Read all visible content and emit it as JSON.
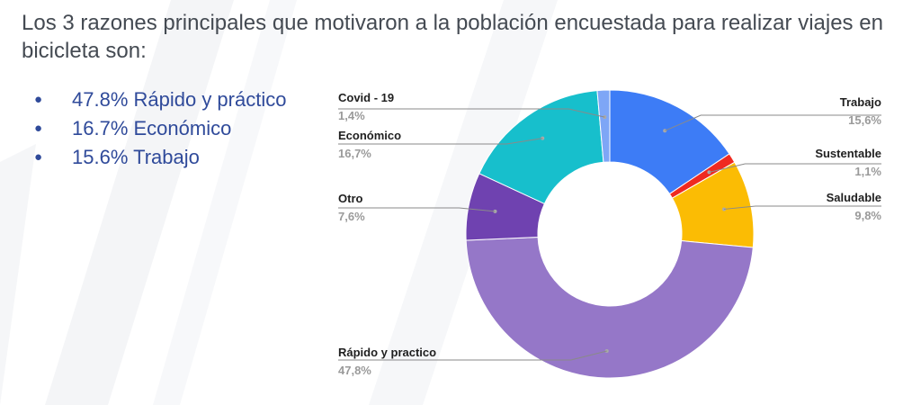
{
  "heading": "Los 3 razones principales que motivaron a la población encuestada para realizar viajes en bicicleta son:",
  "bullets": [
    "47.8% Rápido y práctico",
    "16.7% Económico",
    "15.6% Trabajo"
  ],
  "chart_data": {
    "type": "pie",
    "donut": true,
    "title": "",
    "slices": [
      {
        "name": "Trabajo",
        "value_label": "15,6%",
        "value": 15.6,
        "color": "#3d7cf6"
      },
      {
        "name": "Sustentable",
        "value_label": "1,1%",
        "value": 1.1,
        "color": "#ef2a20"
      },
      {
        "name": "Saludable",
        "value_label": "9,8%",
        "value": 9.8,
        "color": "#fbbc04"
      },
      {
        "name": "Rápido y practico",
        "value_label": "47,8%",
        "value": 47.8,
        "color": "#9577c8"
      },
      {
        "name": "Otro",
        "value_label": "7,6%",
        "value": 7.6,
        "color": "#6f42b0"
      },
      {
        "name": "Económico",
        "value_label": "16,7%",
        "value": 16.7,
        "color": "#17bfcc"
      },
      {
        "name": "Covid - 19",
        "value_label": "1,4%",
        "value": 1.4,
        "color": "#7ea6f6"
      }
    ]
  }
}
